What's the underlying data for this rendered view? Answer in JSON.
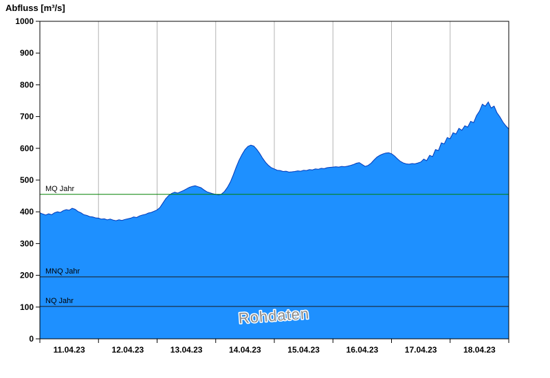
{
  "chart_data": {
    "type": "area",
    "title": "Abfluss [m³/s]",
    "ylabel": "Abfluss [m³/s]",
    "xlabel": "",
    "ylim": [
      0,
      1000
    ],
    "y_ticks": [
      0,
      100,
      200,
      300,
      400,
      500,
      600,
      700,
      800,
      900,
      1000
    ],
    "x_range_days": [
      0,
      8
    ],
    "x_tick_days": [
      0,
      1,
      2,
      3,
      4,
      5,
      6,
      7,
      8
    ],
    "grid_days": [
      1,
      2,
      3,
      4,
      5,
      6,
      7
    ],
    "x_day_labels": [
      "11.04.23",
      "12.04.23",
      "13.04.23",
      "14.04.23",
      "15.04.23",
      "16.04.23",
      "17.04.23",
      "18.04.23"
    ],
    "watermark": "Rohdaten",
    "legend_position": "none",
    "grid": "vertical-only",
    "reference_lines": [
      {
        "label": "MQ Jahr",
        "value": 455,
        "color": "#008000",
        "name": "mq-jahr"
      },
      {
        "label": "MNQ Jahr",
        "value": 195,
        "color": "#1a1a1a",
        "name": "mnq-jahr"
      },
      {
        "label": "NQ Jahr",
        "value": 102,
        "color": "#1a1a1a",
        "name": "nq-jahr"
      }
    ],
    "colors": {
      "area_fill": "#1e90ff",
      "line_stroke": "#0038b8",
      "gridline": "#b3b3b3",
      "frame": "#000000",
      "watermark_fill": "#8c8c8c",
      "watermark_halo": "#ffffff",
      "label_color": "#000000"
    },
    "series": [
      {
        "name": "Abfluss Rohdaten",
        "unit": "m³/s",
        "points": [
          [
            0.0,
            397
          ],
          [
            0.05,
            393
          ],
          [
            0.1,
            390
          ],
          [
            0.15,
            394
          ],
          [
            0.2,
            391
          ],
          [
            0.25,
            397
          ],
          [
            0.3,
            400
          ],
          [
            0.35,
            398
          ],
          [
            0.4,
            404
          ],
          [
            0.45,
            407
          ],
          [
            0.5,
            405
          ],
          [
            0.55,
            411
          ],
          [
            0.6,
            408
          ],
          [
            0.65,
            401
          ],
          [
            0.7,
            397
          ],
          [
            0.75,
            391
          ],
          [
            0.8,
            389
          ],
          [
            0.85,
            385
          ],
          [
            0.9,
            384
          ],
          [
            0.95,
            381
          ],
          [
            1.0,
            380
          ],
          [
            1.05,
            377
          ],
          [
            1.1,
            378
          ],
          [
            1.15,
            375
          ],
          [
            1.2,
            377
          ],
          [
            1.25,
            374
          ],
          [
            1.3,
            372
          ],
          [
            1.35,
            375
          ],
          [
            1.4,
            373
          ],
          [
            1.45,
            376
          ],
          [
            1.5,
            378
          ],
          [
            1.55,
            380
          ],
          [
            1.6,
            384
          ],
          [
            1.65,
            382
          ],
          [
            1.7,
            387
          ],
          [
            1.75,
            390
          ],
          [
            1.8,
            392
          ],
          [
            1.85,
            396
          ],
          [
            1.9,
            398
          ],
          [
            1.95,
            402
          ],
          [
            2.0,
            406
          ],
          [
            2.05,
            414
          ],
          [
            2.1,
            428
          ],
          [
            2.15,
            442
          ],
          [
            2.2,
            452
          ],
          [
            2.25,
            458
          ],
          [
            2.3,
            462
          ],
          [
            2.35,
            459
          ],
          [
            2.4,
            463
          ],
          [
            2.45,
            467
          ],
          [
            2.5,
            472
          ],
          [
            2.55,
            477
          ],
          [
            2.6,
            480
          ],
          [
            2.65,
            482
          ],
          [
            2.7,
            479
          ],
          [
            2.75,
            476
          ],
          [
            2.8,
            469
          ],
          [
            2.85,
            463
          ],
          [
            2.9,
            460
          ],
          [
            2.95,
            457
          ],
          [
            3.0,
            455
          ],
          [
            3.05,
            453
          ],
          [
            3.1,
            456
          ],
          [
            3.15,
            464
          ],
          [
            3.2,
            477
          ],
          [
            3.25,
            494
          ],
          [
            3.3,
            516
          ],
          [
            3.35,
            541
          ],
          [
            3.4,
            563
          ],
          [
            3.45,
            581
          ],
          [
            3.5,
            596
          ],
          [
            3.55,
            606
          ],
          [
            3.6,
            610
          ],
          [
            3.65,
            607
          ],
          [
            3.7,
            597
          ],
          [
            3.75,
            584
          ],
          [
            3.8,
            569
          ],
          [
            3.85,
            556
          ],
          [
            3.9,
            546
          ],
          [
            3.95,
            539
          ],
          [
            4.0,
            535
          ],
          [
            4.05,
            531
          ],
          [
            4.1,
            530
          ],
          [
            4.15,
            527
          ],
          [
            4.2,
            528
          ],
          [
            4.25,
            525
          ],
          [
            4.3,
            526
          ],
          [
            4.35,
            527
          ],
          [
            4.4,
            529
          ],
          [
            4.45,
            528
          ],
          [
            4.5,
            531
          ],
          [
            4.55,
            530
          ],
          [
            4.6,
            533
          ],
          [
            4.65,
            532
          ],
          [
            4.7,
            535
          ],
          [
            4.75,
            534
          ],
          [
            4.8,
            537
          ],
          [
            4.85,
            536
          ],
          [
            4.9,
            539
          ],
          [
            4.95,
            540
          ],
          [
            5.0,
            541
          ],
          [
            5.05,
            542
          ],
          [
            5.1,
            541
          ],
          [
            5.15,
            543
          ],
          [
            5.2,
            542
          ],
          [
            5.25,
            544
          ],
          [
            5.3,
            546
          ],
          [
            5.35,
            549
          ],
          [
            5.4,
            553
          ],
          [
            5.45,
            555
          ],
          [
            5.5,
            549
          ],
          [
            5.55,
            543
          ],
          [
            5.6,
            546
          ],
          [
            5.65,
            553
          ],
          [
            5.7,
            563
          ],
          [
            5.75,
            572
          ],
          [
            5.8,
            578
          ],
          [
            5.85,
            582
          ],
          [
            5.9,
            585
          ],
          [
            5.95,
            586
          ],
          [
            6.0,
            583
          ],
          [
            6.05,
            576
          ],
          [
            6.1,
            567
          ],
          [
            6.15,
            559
          ],
          [
            6.2,
            554
          ],
          [
            6.25,
            551
          ],
          [
            6.3,
            550
          ],
          [
            6.35,
            552
          ],
          [
            6.4,
            551
          ],
          [
            6.45,
            554
          ],
          [
            6.5,
            557
          ],
          [
            6.55,
            566
          ],
          [
            6.6,
            561
          ],
          [
            6.65,
            578
          ],
          [
            6.7,
            574
          ],
          [
            6.75,
            596
          ],
          [
            6.8,
            593
          ],
          [
            6.85,
            617
          ],
          [
            6.9,
            614
          ],
          [
            6.95,
            634
          ],
          [
            7.0,
            630
          ],
          [
            7.05,
            649
          ],
          [
            7.1,
            645
          ],
          [
            7.15,
            663
          ],
          [
            7.2,
            657
          ],
          [
            7.25,
            671
          ],
          [
            7.3,
            667
          ],
          [
            7.35,
            685
          ],
          [
            7.4,
            681
          ],
          [
            7.45,
            703
          ],
          [
            7.5,
            717
          ],
          [
            7.55,
            739
          ],
          [
            7.6,
            733
          ],
          [
            7.65,
            746
          ],
          [
            7.7,
            727
          ],
          [
            7.75,
            733
          ],
          [
            7.8,
            712
          ],
          [
            7.85,
            699
          ],
          [
            7.9,
            683
          ],
          [
            7.95,
            671
          ],
          [
            8.0,
            661
          ]
        ]
      }
    ]
  }
}
